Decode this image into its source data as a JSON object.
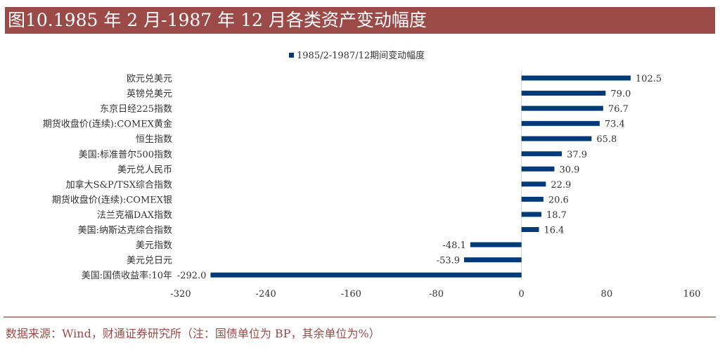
{
  "title": "图10.1985 年 2 月-1987 年 12 月各类资产变动幅度",
  "source": "数据来源：Wind，财通证券研究所（注：国债单位为 BP，其余单位为%）",
  "colors": {
    "bar": "#003A78",
    "title_bg": "#9B4A48",
    "source_text": "#9B4A48"
  },
  "chart_data": {
    "type": "bar",
    "orientation": "horizontal",
    "categories": [
      "欧元兑美元",
      "英镑兑美元",
      "东京日经225指数",
      "期货收盘价(连续):COMEX黄金",
      "恒生指数",
      "美国:标准普尔500指数",
      "美元兑人民币",
      "加拿大S&P/TSX综合指数",
      "期货收盘价(连续):COMEX银",
      "法兰克福DAX指数",
      "美国:纳斯达克综合指数",
      "美元指数",
      "美元兑日元",
      "美国:国债收益率:10年"
    ],
    "series": [
      {
        "name": "1985/2-1987/12期间变动幅度",
        "values": [
          102.5,
          79.0,
          76.7,
          73.4,
          65.8,
          37.9,
          30.9,
          22.9,
          20.6,
          18.7,
          16.4,
          -48.1,
          -53.9,
          -292.0
        ]
      }
    ],
    "xlim": [
      -320,
      160
    ],
    "xticks": [
      -320,
      -240,
      -160,
      -80,
      0,
      80,
      160
    ],
    "legend": "top",
    "grid": false,
    "data_labels": true
  }
}
